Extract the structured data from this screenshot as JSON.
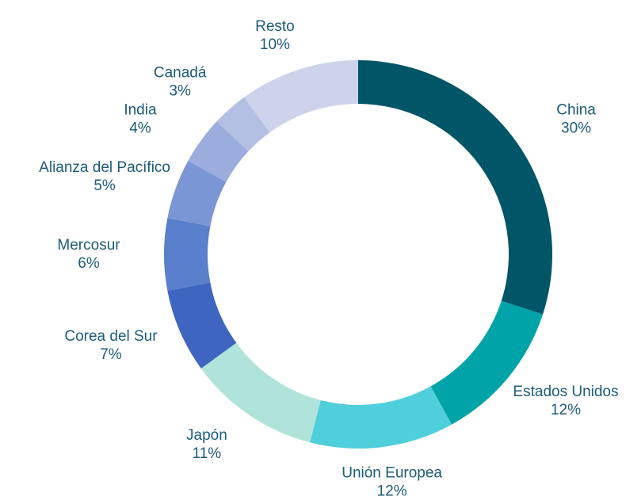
{
  "chart_data": {
    "type": "donut",
    "categories": [
      "China",
      "Estados Unidos",
      "Unión Europea",
      "Japón",
      "Corea del Sur",
      "Mercosur",
      "Alianza del Pacífico",
      "India",
      "Canadá",
      "Resto"
    ],
    "values": [
      30,
      12,
      12,
      11,
      7,
      6,
      5,
      4,
      3,
      10
    ],
    "value_labels": [
      "30%",
      "12%",
      "12%",
      "11%",
      "7%",
      "6%",
      "5%",
      "4%",
      "3%",
      "10%"
    ],
    "colors": [
      "#005566",
      "#00a3a8",
      "#4fcfdc",
      "#b0e3da",
      "#3e66c0",
      "#5a7fcc",
      "#7b96d4",
      "#9aaddd",
      "#b3c0e4",
      "#ccd3eb"
    ]
  }
}
